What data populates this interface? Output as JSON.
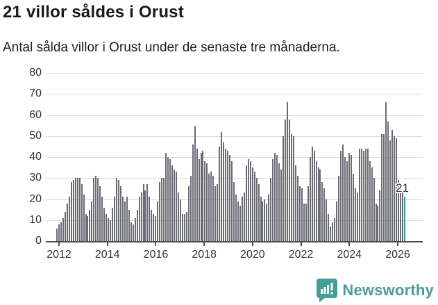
{
  "header": {
    "title": "21 villor såldes i Orust",
    "subtitle": "Antal sålda villor i Orust under de senaste tre månaderna."
  },
  "branding": {
    "logo_text": "Newsworthy",
    "logo_color": "#43a096"
  },
  "chart_data": {
    "type": "bar",
    "title": "21 villor såldes i Orust",
    "subtitle": "Antal sålda villor i Orust under de senaste tre månaderna.",
    "x_start": "2012-01",
    "x_end": "2026-02",
    "frequency": "monthly",
    "ylim": [
      0,
      80
    ],
    "yticks": [
      0,
      10,
      20,
      30,
      40,
      50,
      60,
      70,
      80
    ],
    "xticks": [
      2012,
      2014,
      2016,
      2018,
      2020,
      2022,
      2024,
      2026
    ],
    "grid": "horizontal",
    "annotation": "21",
    "highlight_last_value": 21,
    "colors": {
      "bar": "#6b6b74",
      "highlight": "#2f9fa3"
    },
    "values": [
      6,
      8,
      9,
      11,
      14,
      18,
      21,
      28,
      29,
      30,
      30,
      30,
      27,
      22,
      13,
      12,
      15,
      19,
      30,
      31,
      30,
      26,
      21,
      16,
      13,
      11,
      10,
      16,
      21,
      30,
      29,
      26,
      21,
      19,
      21,
      15,
      9,
      8,
      11,
      15,
      21,
      23,
      27,
      24,
      27,
      21,
      15,
      13,
      12,
      19,
      28,
      30,
      30,
      42,
      40,
      39,
      36,
      34,
      33,
      23,
      20,
      13,
      13,
      14,
      26,
      31,
      46,
      55,
      44,
      39,
      42,
      43,
      38,
      37,
      32,
      33,
      31,
      26,
      27,
      45,
      52,
      47,
      44,
      43,
      41,
      38,
      28,
      22,
      19,
      17,
      21,
      23,
      36,
      39,
      38,
      35,
      33,
      30,
      27,
      21,
      19,
      20,
      18,
      22,
      30,
      39,
      42,
      41,
      37,
      34,
      50,
      58,
      66,
      58,
      51,
      50,
      36,
      31,
      26,
      25,
      18,
      18,
      26,
      40,
      45,
      43,
      38,
      35,
      34,
      28,
      25,
      20,
      13,
      7,
      9,
      11,
      19,
      31,
      43,
      46,
      40,
      38,
      42,
      41,
      32,
      25,
      23,
      44,
      44,
      43,
      44,
      44,
      38,
      35,
      30,
      18,
      17,
      24,
      51,
      51,
      66,
      57,
      48,
      53,
      50,
      49,
      29,
      25,
      23,
      21
    ]
  }
}
